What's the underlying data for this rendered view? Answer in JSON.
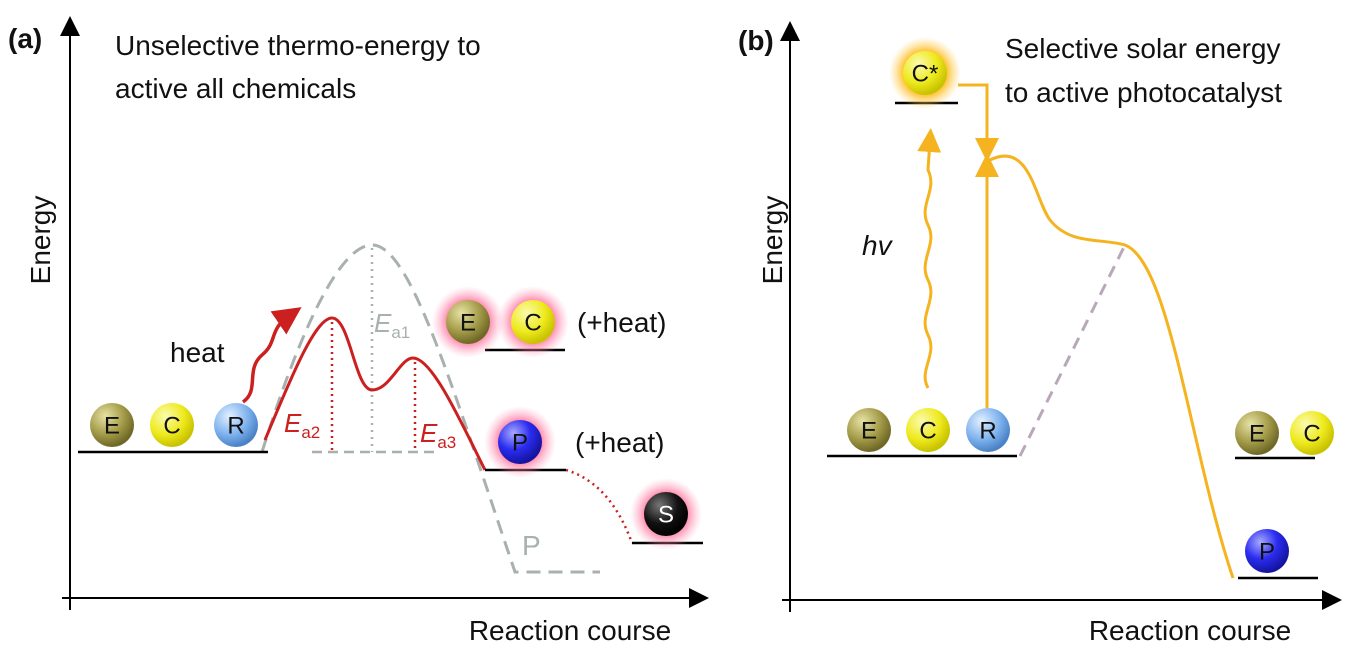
{
  "panels": [
    {
      "label": "(a)",
      "title": [
        "Unselective thermo-energy to",
        "active all chemicals"
      ],
      "y_axis_label": "Energy",
      "x_axis_label": "Reaction course",
      "heat_label": "heat",
      "molecules": [
        "E",
        "C",
        "R",
        "E",
        "C",
        "P",
        "S"
      ],
      "heat_notes": [
        "(+heat)",
        "(+heat)"
      ],
      "side_product_label": "P",
      "barriers": [
        {
          "symbol": "E",
          "sub": "a1"
        },
        {
          "symbol": "E",
          "sub": "a2"
        },
        {
          "symbol": "E",
          "sub": "a3"
        }
      ]
    },
    {
      "label": "(b)",
      "title": [
        "Selective solar energy",
        "to active photocatalyst"
      ],
      "y_axis_label": "Energy",
      "x_axis_label": "Reaction course",
      "excited_catalyst": "C*",
      "light_label": "hv",
      "molecules": [
        "E",
        "C",
        "R",
        "E",
        "C",
        "P"
      ]
    }
  ]
}
